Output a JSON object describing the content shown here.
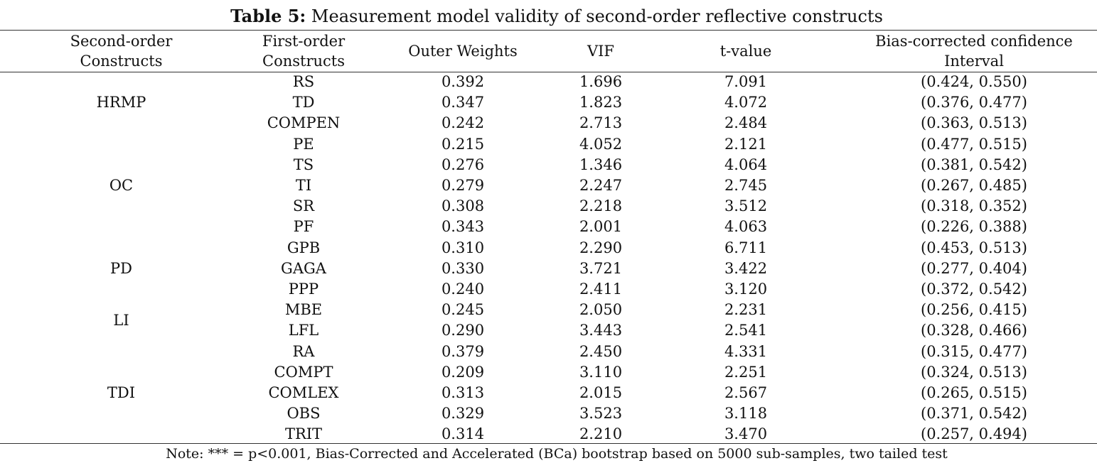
{
  "table": {
    "title_bold": "Table 5:",
    "title_rest": " Measurement model validity of second-order reflective constructs",
    "headers": {
      "second_order_line1": "Second-order",
      "second_order_line2": "Constructs",
      "first_order_line1": "First-order",
      "first_order_line2": "Constructs",
      "outer_weights": "Outer Weights",
      "vif": "VIF",
      "t_value": "t-value",
      "ci_line1": "Bias-corrected confidence",
      "ci_line2": "Interval"
    },
    "groups": [
      {
        "name": "HRMP",
        "rows": [
          {
            "construct": "RS",
            "weight": "0.392",
            "vif": "1.696",
            "t": "7.091",
            "ci": "(0.424, 0.550)"
          },
          {
            "construct": "TD",
            "weight": "0.347",
            "vif": "1.823",
            "t": "4.072",
            "ci": "(0.376, 0.477)"
          },
          {
            "construct": "COMPEN",
            "weight": "0.242",
            "vif": "2.713",
            "t": "2.484",
            "ci": "(0.363, 0.513)"
          }
        ]
      },
      {
        "name": "OC",
        "rows": [
          {
            "construct": "PE",
            "weight": "0.215",
            "vif": "4.052",
            "t": "2.121",
            "ci": "(0.477, 0.515)"
          },
          {
            "construct": "TS",
            "weight": "0.276",
            "vif": "1.346",
            "t": "4.064",
            "ci": "(0.381, 0.542)"
          },
          {
            "construct": "TI",
            "weight": "0.279",
            "vif": "2.247",
            "t": "2.745",
            "ci": "(0.267, 0.485)"
          },
          {
            "construct": "SR",
            "weight": "0.308",
            "vif": "2.218",
            "t": "3.512",
            "ci": "(0.318, 0.352)"
          },
          {
            "construct": "PF",
            "weight": "0.343",
            "vif": "2.001",
            "t": "4.063",
            "ci": "(0.226, 0.388)"
          }
        ]
      },
      {
        "name": "PD",
        "rows": [
          {
            "construct": "GPB",
            "weight": "0.310",
            "vif": "2.290",
            "t": "6.711",
            "ci": "(0.453, 0.513)"
          },
          {
            "construct": "GAGA",
            "weight": "0.330",
            "vif": "3.721",
            "t": "3.422",
            "ci": "(0.277, 0.404)"
          },
          {
            "construct": "PPP",
            "weight": "0.240",
            "vif": "2.411",
            "t": "3.120",
            "ci": "(0.372, 0.542)"
          }
        ]
      },
      {
        "name": "LI",
        "rows": [
          {
            "construct": "MBE",
            "weight": "0.245",
            "vif": "2.050",
            "t": "2.231",
            "ci": "(0.256, 0.415)"
          },
          {
            "construct": "LFL",
            "weight": "0.290",
            "vif": "3.443",
            "t": "2.541",
            "ci": "(0.328, 0.466)"
          }
        ]
      },
      {
        "name": "TDI",
        "rows": [
          {
            "construct": "RA",
            "weight": "0.379",
            "vif": "2.450",
            "t": "4.331",
            "ci": "(0.315, 0.477)"
          },
          {
            "construct": "COMPT",
            "weight": "0.209",
            "vif": "3.110",
            "t": "2.251",
            "ci": "(0.324, 0.513)"
          },
          {
            "construct": "COMLEX",
            "weight": "0.313",
            "vif": "2.015",
            "t": "2.567",
            "ci": "(0.265, 0.515)"
          },
          {
            "construct": "OBS",
            "weight": "0.329",
            "vif": "3.523",
            "t": "3.118",
            "ci": "(0.371, 0.542)"
          },
          {
            "construct": "TRIT",
            "weight": "0.314",
            "vif": "2.210",
            "t": "3.470",
            "ci": "(0.257, 0.494)"
          }
        ]
      }
    ],
    "note": "Note: *** = p<0.001, Bias-Corrected and Accelerated (BCa) bootstrap based on 5000 sub-samples, two tailed test"
  }
}
